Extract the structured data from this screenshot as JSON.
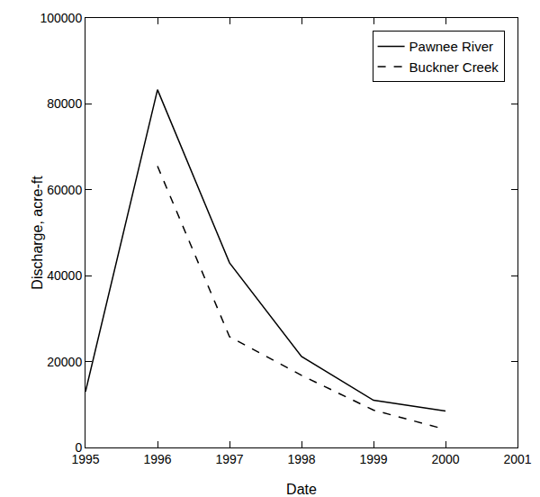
{
  "chart_data": {
    "type": "line",
    "x_label": "Date",
    "y_label": "Discharge, acre-ft",
    "x": [
      1995,
      1996,
      1997,
      1998,
      1999,
      2000
    ],
    "series": [
      {
        "name": "Pawnee River",
        "color": "#000000",
        "line_style": "solid",
        "values": [
          13000,
          83300,
          43000,
          21200,
          11000,
          8500
        ]
      },
      {
        "name": "Buckner Creek",
        "color": "#000000",
        "line_style": "dashed",
        "values": [
          null,
          65500,
          25800,
          16800,
          8700,
          4200
        ]
      }
    ],
    "xlim": [
      1995,
      2001
    ],
    "xticks": [
      1995,
      1996,
      1997,
      1998,
      1999,
      2000,
      2001
    ],
    "ylim": [
      0,
      100000
    ],
    "yticks": [
      0,
      20000,
      40000,
      60000,
      80000,
      100000
    ],
    "grid": false,
    "legend": "upper right"
  }
}
